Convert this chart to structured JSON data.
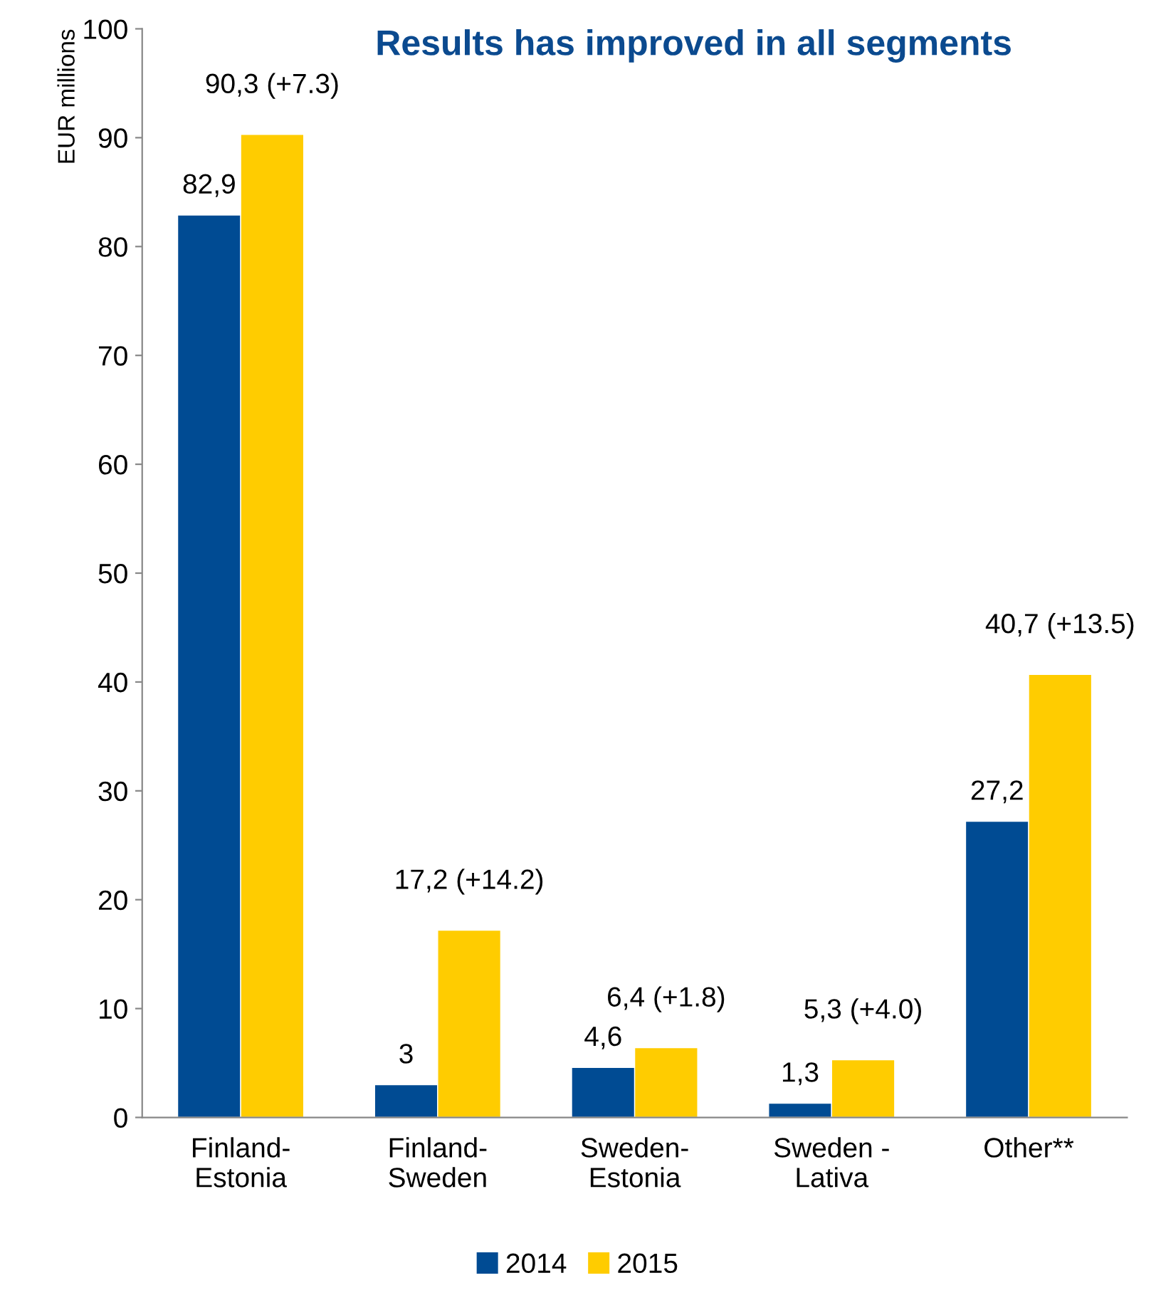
{
  "chart_data": {
    "type": "bar",
    "title": "Results has improved in all segments",
    "ylabel": "EUR millions",
    "categories": [
      "Finland-\nEstonia",
      "Finland-\nSweden",
      "Sweden-\nEstonia",
      "Sweden -\nLativa",
      "Other**"
    ],
    "series": [
      {
        "name": "2014",
        "color": "#004b93",
        "values": [
          82.9,
          3,
          4.6,
          1.3,
          27.2
        ],
        "value_labels": [
          "82,9",
          "3",
          "4,6",
          "1,3",
          "27,2"
        ]
      },
      {
        "name": "2015",
        "color": "#ffcc00",
        "values": [
          90.3,
          17.2,
          6.4,
          5.3,
          40.7
        ],
        "value_labels": [
          "90,3 (+7.3)",
          "17,2 (+14.2)",
          "6,4 (+1.8)",
          "5,3 (+4.0)",
          "40,7 (+13.5)"
        ]
      }
    ],
    "ylim": [
      0,
      100
    ],
    "yticks": [
      0,
      10,
      20,
      30,
      40,
      50,
      60,
      70,
      80,
      90,
      100
    ],
    "grid": false,
    "legend": "bottom"
  }
}
